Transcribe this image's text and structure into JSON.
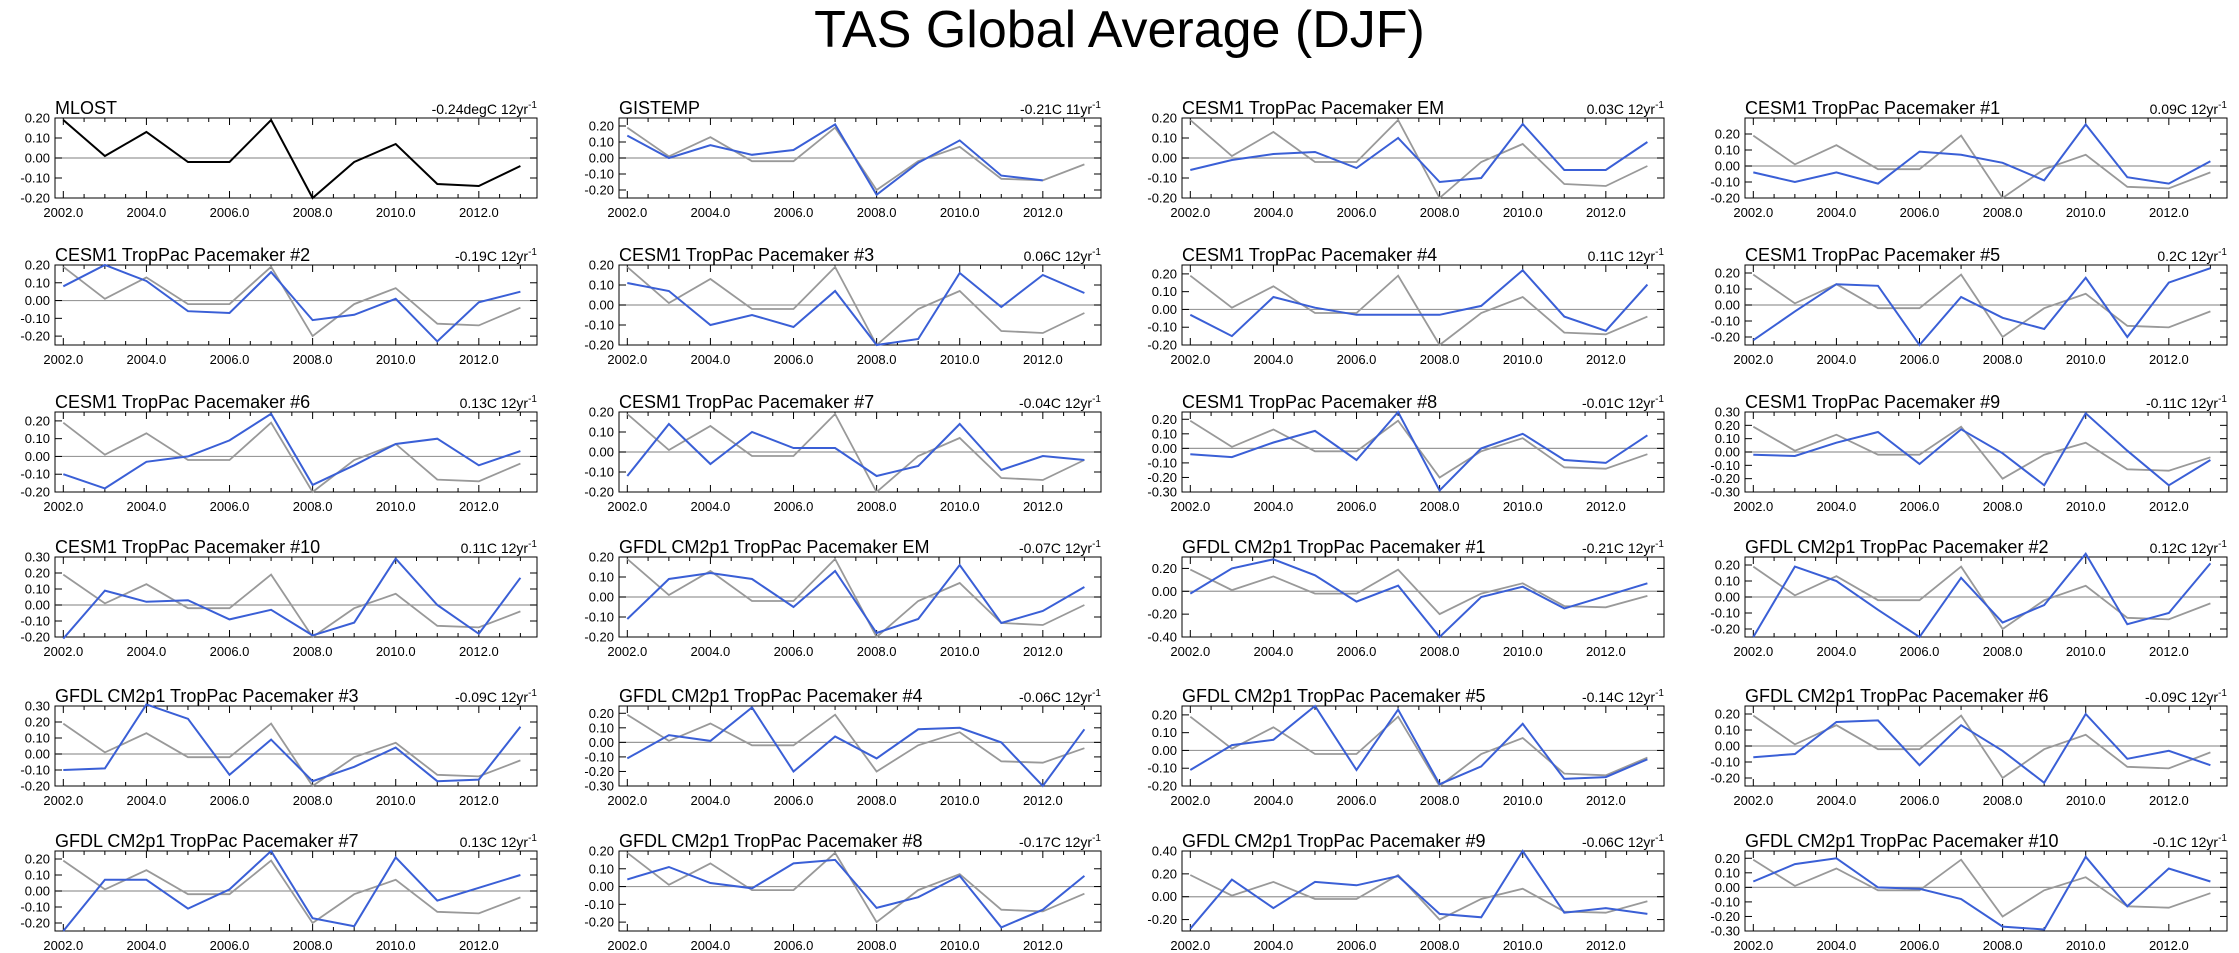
{
  "title": "TAS Global Average (DJF)",
  "colors": {
    "obs": "#000000",
    "model": "#3a5fd6",
    "ref": "#999999",
    "axis": "#000000"
  },
  "chart_data": {
    "type": "line",
    "x": [
      2002,
      2003,
      2004,
      2005,
      2006,
      2007,
      2008,
      2009,
      2010,
      2011,
      2012,
      2013
    ],
    "x_ticks": [
      "2002.0",
      "2004.0",
      "2006.0",
      "2008.0",
      "2010.0",
      "2012.0"
    ],
    "x_tick_values": [
      2002,
      2004,
      2006,
      2008,
      2010,
      2012
    ],
    "xlim": [
      2001.8,
      2013.4
    ],
    "reference_series": [
      0.19,
      0.01,
      0.13,
      -0.02,
      -0.02,
      0.19,
      -0.2,
      -0.02,
      0.07,
      -0.13,
      -0.14,
      -0.04
    ],
    "panels": [
      {
        "title": "MLOST",
        "trend": "-0.24degC 12yr",
        "obs": true,
        "ylim": [
          -0.2,
          0.2
        ],
        "yticks": [
          "0.20",
          "0.10",
          "0.00",
          "-0.10",
          "-0.20"
        ],
        "ytick_values": [
          0.2,
          0.1,
          0,
          -0.1,
          -0.2
        ],
        "values": [
          0.19,
          0.01,
          0.13,
          -0.02,
          -0.02,
          0.19,
          -0.2,
          -0.02,
          0.07,
          -0.13,
          -0.14,
          -0.04
        ]
      },
      {
        "title": "GISTEMP",
        "trend": "-0.21C 11yr",
        "ylim": [
          -0.25,
          0.25
        ],
        "yticks": [
          "0.20",
          "0.10",
          "0.00",
          "-0.10",
          "-0.20"
        ],
        "ytick_values": [
          0.2,
          0.1,
          0,
          -0.1,
          -0.2
        ],
        "values": [
          0.14,
          0.0,
          0.08,
          0.02,
          0.05,
          0.21,
          -0.23,
          -0.03,
          0.11,
          -0.11,
          -0.14,
          null
        ]
      },
      {
        "title": "CESM1 TropPac Pacemaker EM",
        "trend": "0.03C 12yr",
        "ylim": [
          -0.2,
          0.2
        ],
        "yticks": [
          "0.20",
          "0.10",
          "0.00",
          "-0.10",
          "-0.20"
        ],
        "ytick_values": [
          0.2,
          0.1,
          0,
          -0.1,
          -0.2
        ],
        "values": [
          -0.06,
          -0.01,
          0.02,
          0.03,
          -0.05,
          0.1,
          -0.12,
          -0.1,
          0.17,
          -0.06,
          -0.06,
          0.08
        ]
      },
      {
        "title": "CESM1 TropPac Pacemaker #1",
        "trend": "0.09C 12yr",
        "ylim": [
          -0.2,
          0.3
        ],
        "yticks": [
          "0.20",
          "0.10",
          "0.00",
          "-0.10",
          "-0.20"
        ],
        "ytick_values": [
          0.2,
          0.1,
          0,
          -0.1,
          -0.2
        ],
        "values": [
          -0.04,
          -0.1,
          -0.04,
          -0.11,
          0.09,
          0.07,
          0.02,
          -0.09,
          0.26,
          -0.07,
          -0.11,
          0.03
        ]
      },
      {
        "title": "CESM1 TropPac Pacemaker #2",
        "trend": "-0.19C 12yr",
        "ylim": [
          -0.25,
          0.2
        ],
        "yticks": [
          "0.20",
          "0.10",
          "0.00",
          "-0.10",
          "-0.20"
        ],
        "ytick_values": [
          0.2,
          0.1,
          0,
          -0.1,
          -0.2
        ],
        "values": [
          0.08,
          0.2,
          0.11,
          -0.06,
          -0.07,
          0.16,
          -0.11,
          -0.08,
          0.01,
          -0.23,
          -0.01,
          0.05
        ]
      },
      {
        "title": "CESM1 TropPac Pacemaker #3",
        "trend": "0.06C 12yr",
        "ylim": [
          -0.2,
          0.2
        ],
        "yticks": [
          "0.20",
          "0.10",
          "0.00",
          "-0.10",
          "-0.20"
        ],
        "ytick_values": [
          0.2,
          0.1,
          0,
          -0.1,
          -0.2
        ],
        "values": [
          0.11,
          0.07,
          -0.1,
          -0.05,
          -0.11,
          0.07,
          -0.2,
          -0.17,
          0.16,
          -0.01,
          0.15,
          0.06
        ]
      },
      {
        "title": "CESM1 TropPac Pacemaker #4",
        "trend": "0.11C 12yr",
        "ylim": [
          -0.2,
          0.25
        ],
        "yticks": [
          "0.20",
          "0.10",
          "0.00",
          "-0.10",
          "-0.20"
        ],
        "ytick_values": [
          0.2,
          0.1,
          0,
          -0.1,
          -0.2
        ],
        "values": [
          -0.03,
          -0.15,
          0.07,
          0.01,
          -0.03,
          -0.03,
          -0.03,
          0.02,
          0.22,
          -0.04,
          -0.12,
          0.14
        ]
      },
      {
        "title": "CESM1 TropPac Pacemaker #5",
        "trend": "0.2C 12yr",
        "ylim": [
          -0.25,
          0.25
        ],
        "yticks": [
          "0.20",
          "0.10",
          "0.00",
          "-0.10",
          "-0.20"
        ],
        "ytick_values": [
          0.2,
          0.1,
          0,
          -0.1,
          -0.2
        ],
        "values": [
          -0.22,
          -0.04,
          0.13,
          0.12,
          -0.25,
          0.05,
          -0.08,
          -0.15,
          0.17,
          -0.2,
          0.14,
          0.23
        ]
      },
      {
        "title": "CESM1 TropPac Pacemaker #6",
        "trend": "0.13C 12yr",
        "ylim": [
          -0.2,
          0.25
        ],
        "yticks": [
          "0.20",
          "0.10",
          "0.00",
          "-0.10",
          "-0.20"
        ],
        "ytick_values": [
          0.2,
          0.1,
          0,
          -0.1,
          -0.2
        ],
        "values": [
          -0.1,
          -0.18,
          -0.03,
          0.0,
          0.09,
          0.24,
          -0.16,
          -0.05,
          0.07,
          0.1,
          -0.05,
          0.03
        ]
      },
      {
        "title": "CESM1 TropPac Pacemaker #7",
        "trend": "-0.04C 12yr",
        "ylim": [
          -0.2,
          0.2
        ],
        "yticks": [
          "0.20",
          "0.10",
          "0.00",
          "-0.10",
          "-0.20"
        ],
        "ytick_values": [
          0.2,
          0.1,
          0,
          -0.1,
          -0.2
        ],
        "values": [
          -0.12,
          0.14,
          -0.06,
          0.1,
          0.02,
          0.02,
          -0.12,
          -0.07,
          0.14,
          -0.09,
          -0.02,
          -0.04
        ]
      },
      {
        "title": "CESM1 TropPac Pacemaker #8",
        "trend": "-0.01C 12yr",
        "ylim": [
          -0.3,
          0.25
        ],
        "yticks": [
          "0.20",
          "0.10",
          "0.00",
          "-0.10",
          "-0.20",
          "-0.30"
        ],
        "ytick_values": [
          0.2,
          0.1,
          0,
          -0.1,
          -0.2,
          -0.3
        ],
        "values": [
          -0.04,
          -0.06,
          0.04,
          0.12,
          -0.08,
          0.25,
          -0.29,
          0.0,
          0.1,
          -0.08,
          -0.1,
          0.09
        ]
      },
      {
        "title": "CESM1 TropPac Pacemaker #9",
        "trend": "-0.11C 12yr",
        "ylim": [
          -0.3,
          0.3
        ],
        "yticks": [
          "0.30",
          "0.20",
          "0.10",
          "0.00",
          "-0.10",
          "-0.20",
          "-0.30"
        ],
        "ytick_values": [
          0.3,
          0.2,
          0.1,
          0,
          -0.1,
          -0.2,
          -0.3
        ],
        "values": [
          -0.02,
          -0.03,
          0.07,
          0.15,
          -0.09,
          0.17,
          -0.01,
          -0.25,
          0.29,
          0.01,
          -0.25,
          -0.06
        ]
      },
      {
        "title": "CESM1 TropPac Pacemaker #10",
        "trend": "0.11C 12yr",
        "ylim": [
          -0.2,
          0.3
        ],
        "yticks": [
          "0.30",
          "0.20",
          "0.10",
          "0.00",
          "-0.10",
          "-0.20"
        ],
        "ytick_values": [
          0.3,
          0.2,
          0.1,
          0,
          -0.1,
          -0.2
        ],
        "values": [
          -0.21,
          0.09,
          0.02,
          0.03,
          -0.09,
          -0.03,
          -0.19,
          -0.11,
          0.29,
          0.0,
          -0.18,
          0.17
        ]
      },
      {
        "title": "GFDL CM2p1 TropPac Pacemaker EM",
        "trend": "-0.07C 12yr",
        "ylim": [
          -0.2,
          0.2
        ],
        "yticks": [
          "0.20",
          "0.10",
          "0.00",
          "-0.10",
          "-0.20"
        ],
        "ytick_values": [
          0.2,
          0.1,
          0,
          -0.1,
          -0.2
        ],
        "values": [
          -0.11,
          0.09,
          0.12,
          0.09,
          -0.05,
          0.13,
          -0.18,
          -0.11,
          0.16,
          -0.13,
          -0.07,
          0.05
        ]
      },
      {
        "title": "GFDL CM2p1 TropPac Pacemaker #1",
        "trend": "-0.21C 12yr",
        "ylim": [
          -0.4,
          0.3
        ],
        "yticks": [
          "0.20",
          "0.00",
          "-0.20",
          "-0.40"
        ],
        "ytick_values": [
          0.2,
          0,
          -0.2,
          -0.4
        ],
        "values": [
          -0.02,
          0.2,
          0.28,
          0.14,
          -0.09,
          0.05,
          -0.4,
          -0.05,
          0.04,
          -0.15,
          -0.04,
          0.07
        ]
      },
      {
        "title": "GFDL CM2p1 TropPac Pacemaker #2",
        "trend": "0.12C 12yr",
        "ylim": [
          -0.25,
          0.25
        ],
        "yticks": [
          "0.20",
          "0.10",
          "0.00",
          "-0.10",
          "-0.20"
        ],
        "ytick_values": [
          0.2,
          0.1,
          0,
          -0.1,
          -0.2
        ],
        "values": [
          -0.25,
          0.19,
          0.1,
          -0.08,
          -0.25,
          0.12,
          -0.16,
          -0.05,
          0.27,
          -0.17,
          -0.1,
          0.21
        ]
      },
      {
        "title": "GFDL CM2p1 TropPac Pacemaker #3",
        "trend": "-0.09C 12yr",
        "ylim": [
          -0.2,
          0.3
        ],
        "yticks": [
          "0.30",
          "0.20",
          "0.10",
          "0.00",
          "-0.10",
          "-0.20"
        ],
        "ytick_values": [
          0.3,
          0.2,
          0.1,
          0,
          -0.1,
          -0.2
        ],
        "values": [
          -0.1,
          -0.09,
          0.31,
          0.22,
          -0.13,
          0.09,
          -0.17,
          -0.08,
          0.04,
          -0.17,
          -0.16,
          0.17
        ]
      },
      {
        "title": "GFDL CM2p1 TropPac Pacemaker #4",
        "trend": "-0.06C 12yr",
        "ylim": [
          -0.3,
          0.25
        ],
        "yticks": [
          "0.20",
          "0.10",
          "0.00",
          "-0.10",
          "-0.20",
          "-0.30"
        ],
        "ytick_values": [
          0.2,
          0.1,
          0,
          -0.1,
          -0.2,
          -0.3
        ],
        "values": [
          -0.11,
          0.05,
          0.01,
          0.24,
          -0.2,
          0.04,
          -0.11,
          0.09,
          0.1,
          0.0,
          -0.3,
          0.09
        ]
      },
      {
        "title": "GFDL CM2p1 TropPac Pacemaker #5",
        "trend": "-0.14C 12yr",
        "ylim": [
          -0.2,
          0.25
        ],
        "yticks": [
          "0.20",
          "0.10",
          "0.00",
          "-0.10",
          "-0.20"
        ],
        "ytick_values": [
          0.2,
          0.1,
          0,
          -0.1,
          -0.2
        ],
        "values": [
          -0.11,
          0.03,
          0.06,
          0.25,
          -0.11,
          0.23,
          -0.19,
          -0.09,
          0.15,
          -0.16,
          -0.15,
          -0.05
        ]
      },
      {
        "title": "GFDL CM2p1 TropPac Pacemaker #6",
        "trend": "-0.09C 12yr",
        "ylim": [
          -0.25,
          0.25
        ],
        "yticks": [
          "0.20",
          "0.10",
          "0.00",
          "-0.10",
          "-0.20"
        ],
        "ytick_values": [
          0.2,
          0.1,
          0,
          -0.1,
          -0.2
        ],
        "values": [
          -0.07,
          -0.05,
          0.15,
          0.16,
          -0.12,
          0.13,
          -0.03,
          -0.23,
          0.2,
          -0.08,
          -0.03,
          -0.12
        ]
      },
      {
        "title": "GFDL CM2p1 TropPac Pacemaker #7",
        "trend": "0.13C 12yr",
        "ylim": [
          -0.25,
          0.25
        ],
        "yticks": [
          "0.20",
          "0.10",
          "0.00",
          "-0.10",
          "-0.20"
        ],
        "ytick_values": [
          0.2,
          0.1,
          0,
          -0.1,
          -0.2
        ],
        "values": [
          -0.25,
          0.07,
          0.07,
          -0.11,
          0.01,
          0.25,
          -0.17,
          -0.22,
          0.21,
          -0.06,
          0.02,
          0.1
        ]
      },
      {
        "title": "GFDL CM2p1 TropPac Pacemaker #8",
        "trend": "-0.17C 12yr",
        "ylim": [
          -0.25,
          0.2
        ],
        "yticks": [
          "0.20",
          "0.10",
          "0.00",
          "-0.10",
          "-0.20"
        ],
        "ytick_values": [
          0.2,
          0.1,
          0,
          -0.1,
          -0.2
        ],
        "values": [
          0.04,
          0.11,
          0.02,
          -0.01,
          0.13,
          0.15,
          -0.12,
          -0.06,
          0.06,
          -0.23,
          -0.13,
          0.06
        ]
      },
      {
        "title": "GFDL CM2p1 TropPac Pacemaker #9",
        "trend": "-0.06C 12yr",
        "ylim": [
          -0.3,
          0.4
        ],
        "yticks": [
          "0.40",
          "0.20",
          "0.00",
          "-0.20"
        ],
        "ytick_values": [
          0.4,
          0.2,
          0,
          -0.2
        ],
        "values": [
          -0.28,
          0.15,
          -0.1,
          0.13,
          0.1,
          0.18,
          -0.15,
          -0.18,
          0.4,
          -0.14,
          -0.1,
          -0.15
        ]
      },
      {
        "title": "GFDL CM2p1 TropPac Pacemaker #10",
        "trend": "-0.1C 12yr",
        "ylim": [
          -0.3,
          0.25
        ],
        "yticks": [
          "0.20",
          "0.10",
          "0.00",
          "-0.10",
          "-0.20",
          "-0.30"
        ],
        "ytick_values": [
          0.2,
          0.1,
          0,
          -0.1,
          -0.2,
          -0.3
        ],
        "values": [
          0.04,
          0.16,
          0.2,
          0.0,
          -0.01,
          -0.08,
          -0.27,
          -0.29,
          0.21,
          -0.13,
          0.13,
          0.04
        ]
      }
    ],
    "trend_unit_suffix": "-1"
  }
}
